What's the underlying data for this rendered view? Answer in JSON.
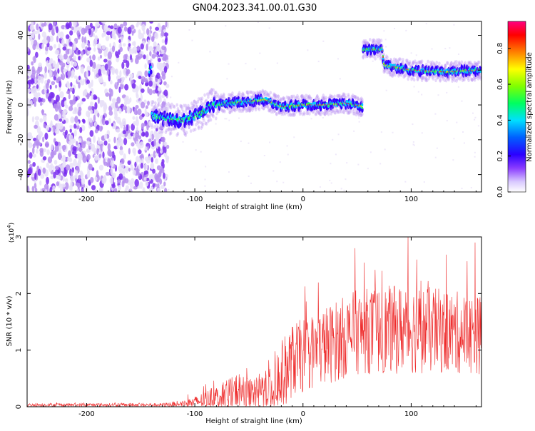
{
  "title": "GN04.2023.341.00.01.G30",
  "chart_data": [
    {
      "type": "heatmap",
      "xlabel": "Height of straight line (km)",
      "ylabel": "Frequency (Hz)",
      "xlim": [
        -255,
        165
      ],
      "ylim": [
        -50,
        48
      ],
      "xticks": [
        -200,
        -100,
        0,
        100
      ],
      "yticks": [
        -40,
        -20,
        0,
        20,
        40
      ],
      "colorbar": {
        "label": "Normalized spectral amplitude",
        "ticks": [
          "0.0",
          "0.2",
          "0.4",
          "0.6",
          "0.8"
        ],
        "range": [
          0,
          0.95
        ]
      },
      "ridge": [
        {
          "x": -140,
          "y": -6
        },
        {
          "x": -125,
          "y": -8
        },
        {
          "x": -110,
          "y": -9
        },
        {
          "x": -95,
          "y": -5
        },
        {
          "x": -85,
          "y": 0
        },
        {
          "x": -70,
          "y": 1
        },
        {
          "x": -50,
          "y": 2
        },
        {
          "x": -35,
          "y": 3
        },
        {
          "x": -20,
          "y": -1
        },
        {
          "x": 0,
          "y": 0
        },
        {
          "x": 20,
          "y": 0
        },
        {
          "x": 40,
          "y": 1
        },
        {
          "x": 55,
          "y": -1
        },
        {
          "x": 56,
          "y": 32
        },
        {
          "x": 73,
          "y": 32
        },
        {
          "x": 75,
          "y": 23
        },
        {
          "x": 100,
          "y": 20
        },
        {
          "x": 130,
          "y": 19
        },
        {
          "x": 165,
          "y": 20
        }
      ],
      "colors": [
        "#e8e0f8",
        "#b68ef0",
        "#7a2ef0",
        "#3200ff",
        "#00d0ff",
        "#30ff40",
        "#ffd000",
        "#ff2020"
      ]
    },
    {
      "type": "line",
      "xlabel": "Height of straight line (km)",
      "ylabel": "SNR (10 * v/v)",
      "multiplier": "(x10",
      "multiplier_exp": "4",
      "xlim": [
        -255,
        165
      ],
      "ylim": [
        0,
        3
      ],
      "xticks": [
        -200,
        -100,
        0,
        100
      ],
      "yticks": [
        0,
        1,
        2,
        3
      ],
      "color": "#ee2a2a",
      "envelope": [
        {
          "x": -255,
          "base": 0.03,
          "amp": 0.03
        },
        {
          "x": -130,
          "base": 0.03,
          "amp": 0.03
        },
        {
          "x": -105,
          "base": 0.05,
          "amp": 0.08
        },
        {
          "x": -80,
          "base": 0.15,
          "amp": 0.2
        },
        {
          "x": -60,
          "base": 0.2,
          "amp": 0.35
        },
        {
          "x": -45,
          "base": 0.2,
          "amp": 0.25
        },
        {
          "x": -25,
          "base": 0.35,
          "amp": 0.6
        },
        {
          "x": -10,
          "base": 0.75,
          "amp": 0.65
        },
        {
          "x": 20,
          "base": 1.0,
          "amp": 0.7
        },
        {
          "x": 50,
          "base": 1.25,
          "amp": 0.75
        },
        {
          "x": 100,
          "base": 1.3,
          "amp": 0.8
        },
        {
          "x": 165,
          "base": 1.2,
          "amp": 0.7
        }
      ],
      "peaks": [
        {
          "x": 48,
          "y": 2.8
        },
        {
          "x": 97,
          "y": 3.0
        },
        {
          "x": 105,
          "y": 2.6
        },
        {
          "x": 159,
          "y": 2.9
        },
        {
          "x": 73,
          "y": 2.4
        }
      ]
    }
  ]
}
